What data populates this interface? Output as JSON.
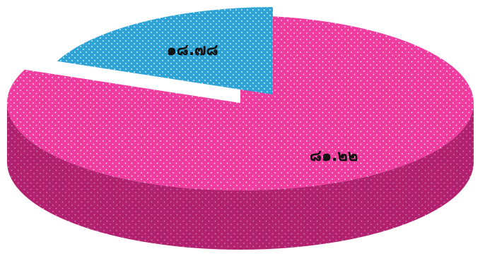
{
  "chart_data": {
    "type": "pie",
    "style": "3d-exploded",
    "title": "",
    "legend": "none",
    "slices": [
      {
        "label": "๘๑.๒๒",
        "value": 81.22,
        "color": "#ee3d9f",
        "side_color": "#b1216f",
        "pattern": "dotted"
      },
      {
        "label": "๑๘.๗๘",
        "value": 18.78,
        "color": "#2ea3d6",
        "side_color": "#1f5e79",
        "pattern": "dotted",
        "exploded": true
      }
    ]
  }
}
